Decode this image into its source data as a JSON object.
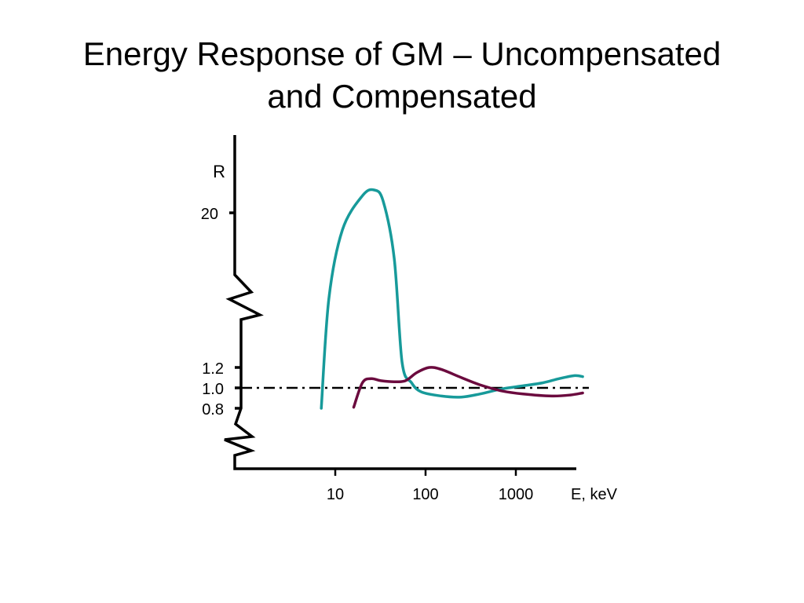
{
  "title_line1": "Energy Response of GM – Uncompensated",
  "title_line2": "and Compensated",
  "chart_data": {
    "type": "line",
    "x_scale": "log",
    "y_scale": "broken",
    "ylabel": "R",
    "xlabel": "E, keV",
    "x_ticks": [
      {
        "value": 10,
        "label": "10"
      },
      {
        "value": 100,
        "label": "100"
      },
      {
        "value": 1000,
        "label": "1000"
      }
    ],
    "y_ticks": [
      {
        "value": 20,
        "label": "20"
      },
      {
        "value": 1.2,
        "label": "1.2"
      },
      {
        "value": 1.0,
        "label": "1.0"
      },
      {
        "value": 0.8,
        "label": "0.8"
      }
    ],
    "reference_line": {
      "y": 1.0,
      "style": "dash-dot"
    },
    "series": [
      {
        "color": "#179a9a",
        "points": [
          [
            7,
            0.8
          ],
          [
            8.5,
            5
          ],
          [
            12,
            17
          ],
          [
            20,
            23
          ],
          [
            27,
            24
          ],
          [
            34,
            22
          ],
          [
            45,
            12
          ],
          [
            55,
            1.25
          ],
          [
            70,
            1.05
          ],
          [
            90,
            0.96
          ],
          [
            150,
            0.92
          ],
          [
            250,
            0.91
          ],
          [
            400,
            0.94
          ],
          [
            700,
            0.99
          ],
          [
            1200,
            1.02
          ],
          [
            2000,
            1.05
          ],
          [
            3000,
            1.09
          ],
          [
            4500,
            1.12
          ],
          [
            5500,
            1.11
          ]
        ]
      },
      {
        "color": "#6b0a3e",
        "points": [
          [
            16,
            0.81
          ],
          [
            20,
            1.05
          ],
          [
            25,
            1.09
          ],
          [
            32,
            1.07
          ],
          [
            45,
            1.06
          ],
          [
            60,
            1.07
          ],
          [
            80,
            1.15
          ],
          [
            110,
            1.2
          ],
          [
            150,
            1.18
          ],
          [
            250,
            1.1
          ],
          [
            400,
            1.03
          ],
          [
            700,
            0.97
          ],
          [
            1200,
            0.94
          ],
          [
            2500,
            0.92
          ],
          [
            4000,
            0.93
          ],
          [
            5500,
            0.95
          ]
        ]
      }
    ]
  }
}
